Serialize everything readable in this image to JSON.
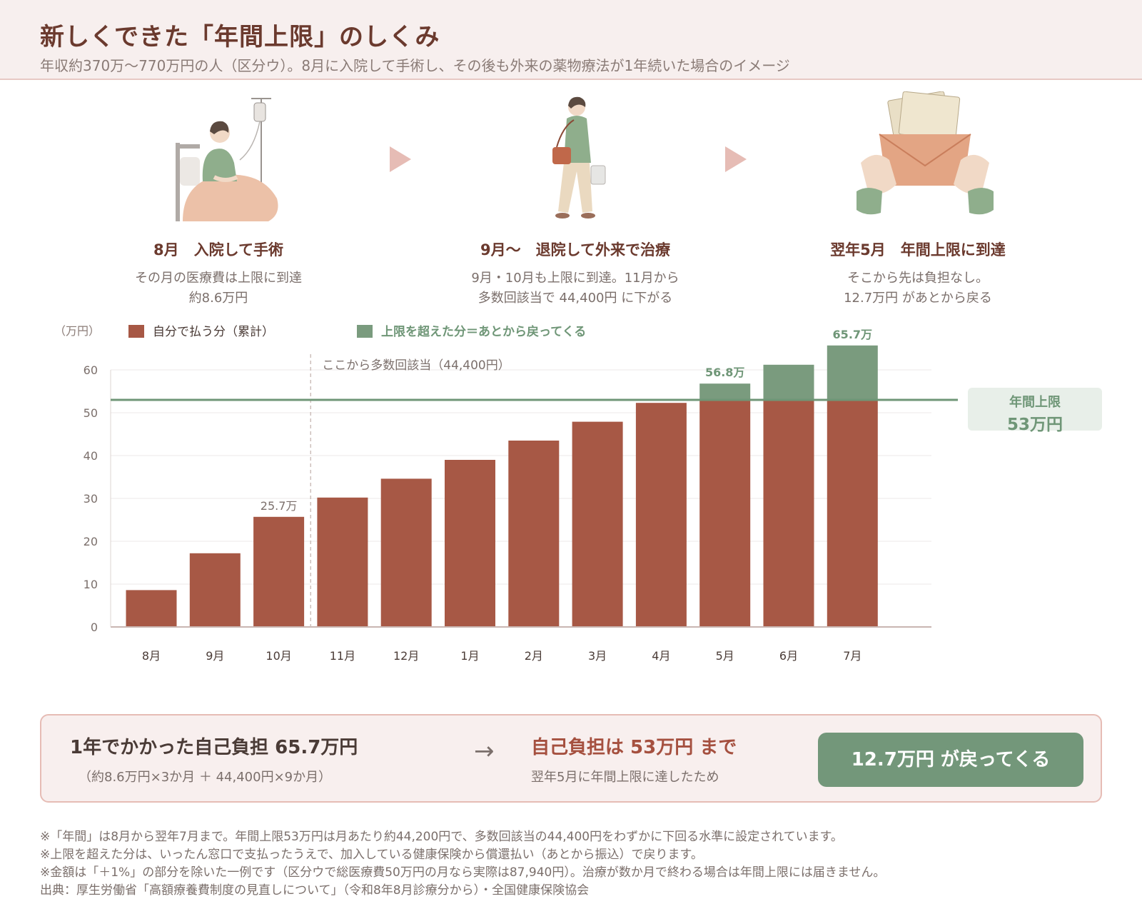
{
  "header": {
    "title": "新しくできた「年間上限」のしくみ",
    "subtitle": "年収約370万〜770万円の人（区分ウ）。8月に入院して手術し、その後も外来の薬物療法が1年続いた場合のイメージ"
  },
  "steps": [
    {
      "title": "8月　入院して手術",
      "lines": [
        "その月の医療費は上限に到達",
        "約8.6万円"
      ],
      "icon": "hospital-bed-illustration"
    },
    {
      "title": "9月〜　退院して外来で治療",
      "lines": [
        "9月・10月も上限に到達。11月から",
        "多数回該当で 44,400円 に下がる"
      ],
      "icon": "walking-woman-illustration"
    },
    {
      "title": "翌年5月　年間上限に到達",
      "lines": [
        "そこから先は負担なし。",
        "12.7万円 があとから戻る"
      ],
      "icon": "money-envelope-illustration"
    }
  ],
  "chart_data": {
    "type": "bar",
    "stacked": true,
    "unit_label": "（万円）",
    "categories": [
      "8月",
      "9月",
      "10月",
      "11月",
      "12月",
      "1月",
      "2月",
      "3月",
      "4月",
      "5月",
      "6月",
      "7月"
    ],
    "series": [
      {
        "name": "自分で払う分（累計）",
        "color": "#a75845",
        "values": [
          8.6,
          17.2,
          25.7,
          30.2,
          34.6,
          39.0,
          43.5,
          47.9,
          52.3,
          53.0,
          53.0,
          53.0
        ]
      },
      {
        "name": "上限を超えた分＝あとから戻ってくる",
        "color": "#7a9b7e",
        "values": [
          0,
          0,
          0,
          0,
          0,
          0,
          0,
          0,
          0,
          3.8,
          8.2,
          12.7
        ]
      }
    ],
    "ylim": [
      0,
      65
    ],
    "yticks": [
      0,
      10,
      20,
      30,
      40,
      50,
      60
    ],
    "grid": true,
    "legend": "top-left",
    "data_labels": [
      {
        "category": "10月",
        "text": "25.7万",
        "color": "#7b6f6b"
      },
      {
        "category": "5月",
        "text": "56.8万",
        "color": "#6f9677"
      },
      {
        "category": "7月",
        "text": "65.7万",
        "color": "#6f9677"
      }
    ],
    "annotation": {
      "after_category": "10月",
      "text": "ここから多数回該当（44,400円）"
    },
    "reference_line": {
      "value": 53,
      "label_line1": "年間上限",
      "label_line2": "53万円",
      "color": "#6f9677"
    }
  },
  "summary": {
    "left_main": "1年でかかった自己負担 65.7万円",
    "left_sub": "（約8.6万円×3か月 ＋ 44,400円×9か月）",
    "arrow": "→",
    "mid_main": "自己負担は 53万円 まで",
    "mid_sub": "翌年5月に年間上限に達したため",
    "button": "12.7万円 が戻ってくる"
  },
  "notes": [
    "※「年間」は8月から翌年7月まで。年間上限53万円は月あたり約44,200円で、多数回該当の44,400円をわずかに下回る水準に設定されています。",
    "※上限を超えた分は、いったん窓口で支払ったうえで、加入している健康保険から償還払い（あとから振込）で戻ります。",
    "※金額は「＋1%」の部分を除いた一例です（区分ウで総医療費50万円の月なら実際は87,940円）。治療が数か月で終わる場合は年間上限には届きません。",
    "出典：厚生労働省「高額療養費制度の見直しについて」（令和8年8月診療分から）・全国健康保険協会"
  ]
}
